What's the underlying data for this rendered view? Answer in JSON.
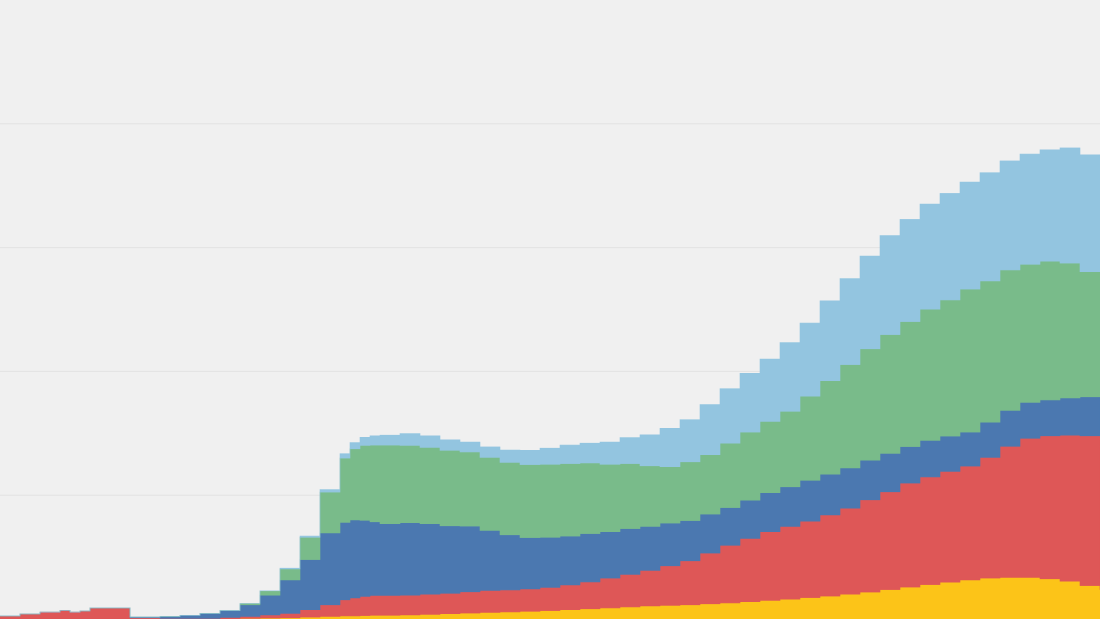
{
  "chart_data": {
    "type": "area",
    "stacked": true,
    "step": true,
    "ylim": [
      0,
      100
    ],
    "grid": true,
    "gridlines": [
      0,
      20,
      40,
      60,
      80
    ],
    "background_color": "#f0f0f0",
    "grid_color": "#e2e2e2",
    "x": [
      0,
      20,
      40,
      60,
      70,
      80,
      90,
      100,
      130,
      160,
      180,
      200,
      220,
      240,
      260,
      280,
      300,
      320,
      340,
      350,
      360,
      370,
      380,
      400,
      420,
      440,
      460,
      480,
      500,
      520,
      540,
      560,
      580,
      600,
      620,
      640,
      660,
      680,
      700,
      720,
      740,
      760,
      780,
      800,
      820,
      840,
      860,
      880,
      900,
      920,
      940,
      960,
      980,
      1000,
      1020,
      1040,
      1060,
      1080,
      1100
    ],
    "series": [
      {
        "color": "#fcc418",
        "values": [
          0,
          0,
          0,
          0,
          0,
          0,
          0,
          0,
          0,
          0,
          0,
          0,
          0.05,
          0.1,
          0.15,
          0.2,
          0.3,
          0.4,
          0.5,
          0.5,
          0.55,
          0.6,
          0.6,
          0.65,
          0.75,
          0.85,
          0.95,
          1.05,
          1.15,
          1.25,
          1.35,
          1.5,
          1.65,
          1.8,
          1.95,
          2.1,
          2.2,
          2.3,
          2.45,
          2.6,
          2.8,
          3.0,
          3.2,
          3.45,
          3.7,
          4.0,
          4.35,
          4.75,
          5.15,
          5.55,
          5.95,
          6.3,
          6.6,
          6.7,
          6.7,
          6.5,
          6.1,
          5.4,
          4.7
        ]
      },
      {
        "color": "#de5757",
        "values": [
          0.5,
          0.8,
          1.1,
          1.4,
          1.1,
          1.3,
          1.8,
          1.8,
          0.2,
          0.1,
          0.1,
          0.1,
          0.2,
          0.3,
          0.5,
          0.7,
          1.2,
          1.9,
          2.6,
          2.9,
          3.1,
          3.2,
          3.2,
          3.2,
          3.25,
          3.3,
          3.45,
          3.55,
          3.55,
          3.6,
          3.75,
          4.0,
          4.35,
          4.8,
          5.25,
          5.75,
          6.4,
          7.1,
          8.2,
          9.3,
          10.2,
          11.1,
          11.75,
          12.35,
          13.1,
          13.9,
          14.9,
          15.8,
          16.8,
          17.4,
          17.9,
          18.4,
          19.5,
          21.2,
          22.5,
          23.1,
          23.6,
          24.2,
          25.3
        ]
      },
      {
        "color": "#4b78b0",
        "values": [
          0,
          0,
          0,
          0,
          0,
          0,
          0,
          0,
          0.1,
          0.3,
          0.5,
          0.8,
          1.1,
          1.9,
          3.2,
          5.4,
          8.1,
          11.6,
          12.5,
          12.6,
          12.3,
          11.9,
          11.6,
          11.7,
          11.4,
          10.9,
          10.6,
          9.7,
          8.9,
          8.3,
          8.1,
          7.9,
          7.8,
          7.5,
          7.4,
          7.1,
          6.9,
          6.5,
          6.3,
          6.1,
          6.2,
          6.3,
          6.4,
          6.6,
          6.6,
          6.5,
          6.4,
          6.2,
          5.9,
          5.9,
          5.7,
          5.5,
          5.7,
          5.8,
          5.8,
          5.8,
          6.0,
          6.3,
          6.4
        ]
      },
      {
        "color": "#79bb8a",
        "values": [
          0,
          0,
          0,
          0,
          0,
          0,
          0,
          0,
          0,
          0,
          0,
          0,
          0,
          0.2,
          0.7,
          1.8,
          3.6,
          6.6,
          10.4,
          11.5,
          12.1,
          12.4,
          12.7,
          12.5,
          12.3,
          12.2,
          12.0,
          11.8,
          11.7,
          11.8,
          11.8,
          11.7,
          11.4,
          10.9,
          10.5,
          9.8,
          9.1,
          9.5,
          9.6,
          10.4,
          11.0,
          11.5,
          12.2,
          13.6,
          15.1,
          16.7,
          18.0,
          19.2,
          20.2,
          21.2,
          22.0,
          23.1,
          22.8,
          22.7,
          22.3,
          22.4,
          21.8,
          20.2,
          20.3
        ]
      },
      {
        "color": "#93c5e0",
        "values": [
          0,
          0,
          0,
          0,
          0,
          0,
          0,
          0,
          0,
          0,
          0,
          0,
          0,
          0,
          0,
          0.1,
          0.2,
          0.4,
          0.7,
          1.0,
          1.3,
          1.5,
          1.6,
          1.9,
          1.9,
          1.7,
          1.6,
          1.7,
          2.0,
          2.3,
          2.6,
          3.0,
          3.2,
          3.6,
          4.2,
          5.0,
          6.2,
          6.8,
          8.1,
          8.8,
          9.5,
          10.1,
          11.1,
          11.8,
          12.9,
          13.9,
          15.0,
          16.0,
          16.5,
          17.0,
          17.2,
          17.3,
          17.5,
          17.6,
          17.8,
          18.0,
          18.6,
          18.9,
          17.0
        ]
      }
    ]
  }
}
